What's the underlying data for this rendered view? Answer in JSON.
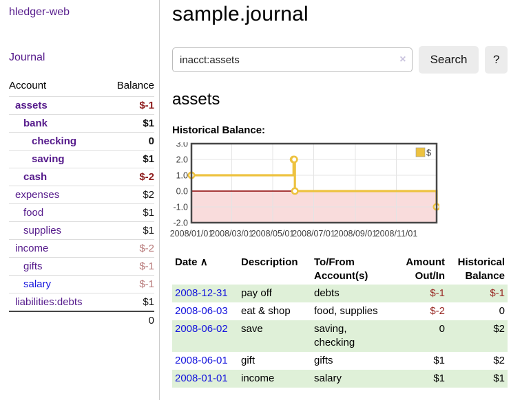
{
  "colors": {
    "accent_purple": "#551a8b",
    "link_blue": "#1414dd",
    "negative_dark": "#8f1d1d",
    "negative_faded": "#b87a7a",
    "row_green": "#dff0d8",
    "chart_yellow": "#edc240",
    "chart_negative_fill": "#f9dcdc",
    "chart_zero_line": "#8b0000",
    "chart_border": "#474747",
    "chart_grid": "#e4e4e4"
  },
  "sidebar": {
    "app_title": "hledger-web",
    "nav": {
      "journal_label": "Journal"
    },
    "accounts": {
      "headers": {
        "account": "Account",
        "balance": "Balance"
      },
      "rows": [
        {
          "account": "assets",
          "depth": 1,
          "emphasis": true,
          "account_color": "purple",
          "balance": "$-1",
          "balance_color": "dark-red"
        },
        {
          "account": "bank",
          "depth": 2,
          "emphasis": true,
          "account_color": "purple",
          "balance": "$1",
          "balance_color": "black"
        },
        {
          "account": "checking",
          "depth": 3,
          "emphasis": true,
          "account_color": "purple",
          "balance": "0",
          "balance_color": "black"
        },
        {
          "account": "saving",
          "depth": 3,
          "emphasis": true,
          "account_color": "purple",
          "balance": "$1",
          "balance_color": "black"
        },
        {
          "account": "cash",
          "depth": 2,
          "emphasis": true,
          "account_color": "purple",
          "balance": "$-2",
          "balance_color": "dark-red"
        },
        {
          "account": "expenses",
          "depth": 1,
          "emphasis": false,
          "account_color": "purple",
          "balance": "$2",
          "balance_color": "black"
        },
        {
          "account": "food",
          "depth": 2,
          "emphasis": false,
          "account_color": "purple",
          "balance": "$1",
          "balance_color": "black"
        },
        {
          "account": "supplies",
          "depth": 2,
          "emphasis": false,
          "account_color": "purple",
          "balance": "$1",
          "balance_color": "black"
        },
        {
          "account": "income",
          "depth": 1,
          "emphasis": false,
          "account_color": "purple",
          "balance": "$-2",
          "balance_color": "faded-red"
        },
        {
          "account": "gifts",
          "depth": 2,
          "emphasis": false,
          "account_color": "purple",
          "balance": "$-1",
          "balance_color": "faded-red"
        },
        {
          "account": "salary",
          "depth": 2,
          "emphasis": false,
          "account_color": "blue",
          "balance": "$-1",
          "balance_color": "faded-red"
        },
        {
          "account": "liabilities:debts",
          "depth": 1,
          "emphasis": false,
          "account_color": "purple",
          "balance": "$1",
          "balance_color": "black"
        }
      ],
      "total": "0"
    }
  },
  "main": {
    "title": "sample.journal",
    "search": {
      "value": "inacct:assets",
      "clear_icon": "×",
      "search_button": "Search",
      "help_button": "?"
    },
    "account_heading": "assets",
    "chart_heading": "Historical Balance:"
  },
  "chart_data": {
    "type": "line",
    "step": true,
    "title": "Historical Balance:",
    "series": [
      {
        "name": "$",
        "color": "#edc240",
        "points": [
          {
            "date": "2008-01-01",
            "day": 0,
            "value": 1
          },
          {
            "date": "2008-06-01",
            "day": 152,
            "value": 2
          },
          {
            "date": "2008-06-02",
            "day": 153,
            "value": 2
          },
          {
            "date": "2008-06-03",
            "day": 154,
            "value": 0
          },
          {
            "date": "2008-12-31",
            "day": 365,
            "value": -1
          }
        ]
      }
    ],
    "x_axis": {
      "range_days": [
        0,
        365
      ],
      "ticks": [
        {
          "day": 0,
          "label": "2008/01/01"
        },
        {
          "day": 60,
          "label": "2008/03/01"
        },
        {
          "day": 121,
          "label": "2008/05/01"
        },
        {
          "day": 182,
          "label": "2008/07/01"
        },
        {
          "day": 244,
          "label": "2008/09/01"
        },
        {
          "day": 305,
          "label": "2008/11/01"
        }
      ]
    },
    "y_axis": {
      "range": [
        -2,
        3
      ],
      "ticks": [
        {
          "value": 3,
          "label": "3.0"
        },
        {
          "value": 2,
          "label": "2.0"
        },
        {
          "value": 1,
          "label": "1.0"
        },
        {
          "value": 0,
          "label": "0.0"
        },
        {
          "value": -1,
          "label": "-1.0"
        },
        {
          "value": -2,
          "label": "-2.0"
        }
      ]
    },
    "legend": {
      "label": "$",
      "position": "top-right"
    },
    "grid": true,
    "negative_region_shaded": true
  },
  "register": {
    "headers": {
      "date": "Date",
      "sort_icon": "∧",
      "description": "Description",
      "accounts": "To/From Account(s)",
      "amount": "Amount Out/In",
      "balance": "Historical Balance"
    },
    "rows": [
      {
        "date": "2008-12-31",
        "description": "pay off",
        "accounts": "debts",
        "amount": "$-1",
        "amount_neg": true,
        "balance": "$-1",
        "balance_neg": true,
        "shaded": true
      },
      {
        "date": "2008-06-03",
        "description": "eat & shop",
        "accounts": "food, supplies",
        "amount": "$-2",
        "amount_neg": true,
        "balance": "0",
        "balance_neg": false,
        "shaded": false
      },
      {
        "date": "2008-06-02",
        "description": "save",
        "accounts": "saving, checking",
        "amount": "0",
        "amount_neg": false,
        "balance": "$2",
        "balance_neg": false,
        "shaded": true
      },
      {
        "date": "2008-06-01",
        "description": "gift",
        "accounts": "gifts",
        "amount": "$1",
        "amount_neg": false,
        "balance": "$2",
        "balance_neg": false,
        "shaded": false
      },
      {
        "date": "2008-01-01",
        "description": "income",
        "accounts": "salary",
        "amount": "$1",
        "amount_neg": false,
        "balance": "$1",
        "balance_neg": false,
        "shaded": true
      }
    ]
  }
}
